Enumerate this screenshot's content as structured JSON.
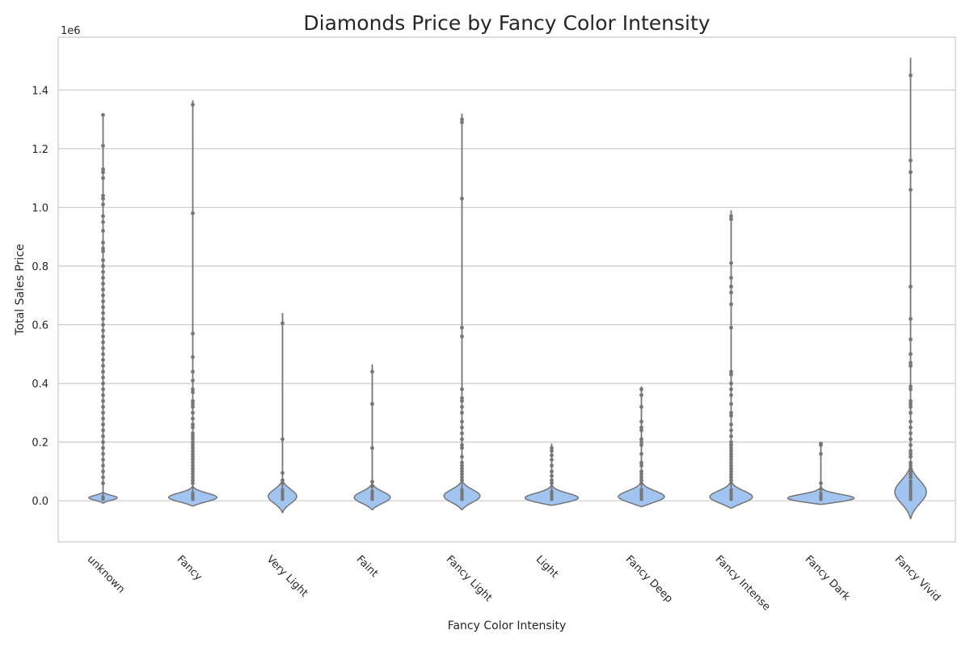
{
  "chart_data": {
    "type": "violin",
    "title": "Diamonds Price by Fancy Color Intensity",
    "xlabel": "Fancy Color Intensity",
    "ylabel": "Total Sales Price",
    "y_offset_label": "1e6",
    "ylim": [
      -0.14,
      1.58
    ],
    "yticks": [
      0.0,
      0.2,
      0.4,
      0.6,
      0.8,
      1.0,
      1.2,
      1.4
    ],
    "ytick_labels": [
      "0.0",
      "0.2",
      "0.4",
      "0.6",
      "0.8",
      "1.0",
      "1.2",
      "1.4"
    ],
    "grid": "horizontal",
    "fill_color": "#a1c4f0",
    "edge_color": "#767676",
    "categories": [
      "unknown",
      "Fancy",
      "Very Light",
      "Faint",
      "Fancy Light",
      "Light",
      "Fancy Deep",
      "Fancy Intense",
      "Fancy Dark",
      "Fancy Vivid"
    ],
    "violins": [
      {
        "category": "unknown",
        "min": 0.0,
        "max": 1.315,
        "kde_bottom": -0.008,
        "kde_top": 0.03,
        "peak": 0.01,
        "peak_halfwidth": 0.18,
        "points": [
          1.315,
          1.21,
          1.13,
          1.12,
          1.1,
          1.04,
          1.03,
          1.01,
          0.97,
          0.95,
          0.92,
          0.88,
          0.86,
          0.85,
          0.82,
          0.8,
          0.78,
          0.76,
          0.74,
          0.72,
          0.7,
          0.68,
          0.66,
          0.64,
          0.62,
          0.6,
          0.58,
          0.56,
          0.54,
          0.52,
          0.5,
          0.48,
          0.46,
          0.44,
          0.42,
          0.4,
          0.38,
          0.36,
          0.34,
          0.32,
          0.3,
          0.28,
          0.26,
          0.24,
          0.22,
          0.2,
          0.18,
          0.16,
          0.14,
          0.12,
          0.1,
          0.08,
          0.06
        ]
      },
      {
        "category": "Fancy",
        "min": 0.0,
        "max": 1.365,
        "kde_bottom": -0.018,
        "kde_top": 0.05,
        "peak": 0.01,
        "peak_halfwidth": 0.31,
        "points": [
          1.35,
          0.98,
          0.57,
          0.49,
          0.44,
          0.41,
          0.38,
          0.37,
          0.34,
          0.33,
          0.32,
          0.3,
          0.28,
          0.26,
          0.25,
          0.23,
          0.22,
          0.21,
          0.2,
          0.19,
          0.18,
          0.17,
          0.16,
          0.15,
          0.14,
          0.13,
          0.12,
          0.11,
          0.1,
          0.09,
          0.08,
          0.07,
          0.06
        ]
      },
      {
        "category": "Very Light",
        "min": 0.0,
        "max": 0.64,
        "kde_bottom": -0.04,
        "kde_top": 0.07,
        "peak": 0.015,
        "peak_halfwidth": 0.18,
        "points": [
          0.605,
          0.21,
          0.095,
          0.07,
          0.06
        ]
      },
      {
        "category": "Faint",
        "min": 0.0,
        "max": 0.465,
        "kde_bottom": -0.03,
        "kde_top": 0.06,
        "peak": 0.01,
        "peak_halfwidth": 0.23,
        "points": [
          0.44,
          0.33,
          0.18,
          0.065,
          0.05
        ]
      },
      {
        "category": "Fancy Light",
        "min": 0.0,
        "max": 1.32,
        "kde_bottom": -0.03,
        "kde_top": 0.07,
        "peak": 0.015,
        "peak_halfwidth": 0.23,
        "points": [
          1.3,
          1.29,
          1.03,
          0.59,
          0.56,
          0.38,
          0.35,
          0.34,
          0.32,
          0.3,
          0.27,
          0.25,
          0.23,
          0.21,
          0.19,
          0.18,
          0.15,
          0.13,
          0.12,
          0.11,
          0.1,
          0.09,
          0.08,
          0.07
        ]
      },
      {
        "category": "Light",
        "min": 0.0,
        "max": 0.195,
        "kde_bottom": -0.015,
        "kde_top": 0.06,
        "peak": 0.005,
        "peak_halfwidth": 0.38,
        "points": [
          0.18,
          0.17,
          0.155,
          0.14,
          0.12,
          0.1,
          0.085,
          0.07,
          0.06
        ]
      },
      {
        "category": "Fancy Deep",
        "min": 0.0,
        "max": 0.39,
        "kde_bottom": -0.02,
        "kde_top": 0.07,
        "peak": 0.01,
        "peak_halfwidth": 0.31,
        "points": [
          0.38,
          0.36,
          0.32,
          0.27,
          0.25,
          0.24,
          0.21,
          0.2,
          0.19,
          0.16,
          0.13,
          0.12,
          0.1,
          0.09,
          0.08,
          0.07,
          0.06
        ]
      },
      {
        "category": "Fancy Intense",
        "min": 0.0,
        "max": 0.99,
        "kde_bottom": -0.025,
        "kde_top": 0.07,
        "peak": 0.01,
        "peak_halfwidth": 0.28,
        "points": [
          0.97,
          0.96,
          0.81,
          0.76,
          0.73,
          0.71,
          0.67,
          0.59,
          0.44,
          0.43,
          0.4,
          0.38,
          0.36,
          0.33,
          0.3,
          0.29,
          0.26,
          0.24,
          0.22,
          0.2,
          0.19,
          0.18,
          0.17,
          0.16,
          0.15,
          0.14,
          0.13,
          0.12,
          0.11,
          0.1,
          0.09,
          0.08,
          0.07,
          0.06
        ]
      },
      {
        "category": "Fancy Dark",
        "min": 0.0,
        "max": 0.2,
        "kde_bottom": -0.012,
        "kde_top": 0.05,
        "peak": 0.005,
        "peak_halfwidth": 0.47,
        "points": [
          0.195,
          0.19,
          0.16,
          0.06,
          0.04
        ]
      },
      {
        "category": "Fancy Vivid",
        "min": 0.0,
        "max": 1.51,
        "kde_bottom": -0.06,
        "kde_top": 0.12,
        "peak": 0.03,
        "peak_halfwidth": 0.2,
        "points": [
          1.45,
          1.16,
          1.12,
          1.06,
          0.73,
          0.62,
          0.55,
          0.5,
          0.47,
          0.46,
          0.39,
          0.38,
          0.34,
          0.33,
          0.32,
          0.3,
          0.27,
          0.25,
          0.23,
          0.21,
          0.19,
          0.17,
          0.16,
          0.15,
          0.13,
          0.12,
          0.11,
          0.1,
          0.09,
          0.08
        ]
      }
    ]
  }
}
